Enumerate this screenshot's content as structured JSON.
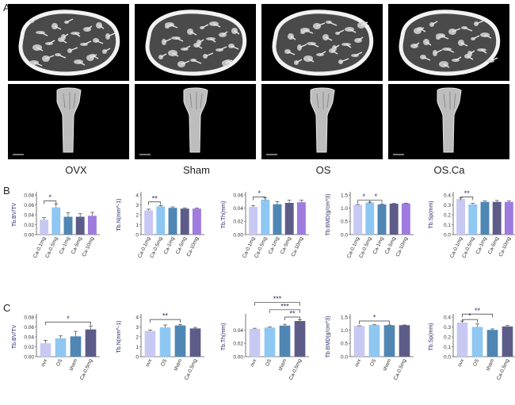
{
  "panels": {
    "a": "A",
    "b": "B",
    "c": "C"
  },
  "groups": [
    "OVX",
    "Sham",
    "OS",
    "OS.Ca"
  ],
  "colors": {
    "c1": "#c8c9f2",
    "c2": "#8ec7f2",
    "c3": "#4f86b4",
    "c4": "#5d5c89",
    "c5": "#9f7be0"
  },
  "chart_data": [
    {
      "type": "bar",
      "row": "B",
      "ylabel": "Tb.BV/TV",
      "categories": [
        "Ca-0.1mg",
        "Ca-0.5mg",
        "Ca-1mg",
        "Ca-5mg",
        "Ca-10mg"
      ],
      "values": [
        0.03,
        0.055,
        0.036,
        0.036,
        0.038
      ],
      "errors": [
        0.004,
        0.007,
        0.008,
        0.006,
        0.007
      ],
      "yticks": [
        "0.00",
        "0.02",
        "0.04",
        "0.06",
        "0.08"
      ],
      "ylim": [
        0,
        0.08
      ],
      "sig": [
        {
          "from": 0,
          "to": 1,
          "label": "*",
          "y": 0.068
        }
      ]
    },
    {
      "type": "bar",
      "row": "B",
      "ylabel": "Tb.N(mm^-1)",
      "categories": [
        "Ca-0.1mg",
        "Ca-0.5mg",
        "Ca-1mg",
        "Ca-5mg",
        "Ca-10mg"
      ],
      "values": [
        2.45,
        2.85,
        2.7,
        2.62,
        2.62
      ],
      "errors": [
        0.12,
        0.08,
        0.1,
        0.08,
        0.05
      ],
      "yticks": [
        "0",
        "1",
        "2",
        "3",
        "4"
      ],
      "ylim": [
        0,
        4
      ],
      "sig": [
        {
          "from": 0,
          "to": 1,
          "label": "**",
          "y": 3.3
        }
      ]
    },
    {
      "type": "bar",
      "row": "B",
      "ylabel": "Tb.Th(mm)",
      "categories": [
        "Ca-0.1mg",
        "Ca-0.5mg",
        "Ca-1mg",
        "Ca-5mg",
        "Ca-10mg"
      ],
      "values": [
        0.042,
        0.053,
        0.046,
        0.048,
        0.049
      ],
      "errors": [
        0.002,
        0.003,
        0.004,
        0.004,
        0.003
      ],
      "yticks": [
        "0.00",
        "0.02",
        "0.04",
        "0.06"
      ],
      "ylim": [
        0,
        0.06
      ],
      "sig": [
        {
          "from": 0,
          "to": 1,
          "label": "*",
          "y": 0.057
        }
      ]
    },
    {
      "type": "bar",
      "row": "B",
      "ylabel": "Tb.BMD(g/cm^3)",
      "categories": [
        "Ca-0.1mg",
        "Ca-0.5mg",
        "Ca-1mg",
        "Ca-5mg",
        "Ca-10mg"
      ],
      "values": [
        1.13,
        1.21,
        1.14,
        1.17,
        1.18
      ],
      "errors": [
        0.01,
        0.02,
        0.01,
        0.01,
        0.01
      ],
      "yticks": [
        "0.0",
        "0.5",
        "1.0",
        "1.5"
      ],
      "ylim": [
        0,
        1.5
      ],
      "sig": [
        {
          "from": 0,
          "to": 1,
          "label": "*",
          "y": 1.3
        },
        {
          "from": 1,
          "to": 2,
          "label": "*",
          "y": 1.3
        }
      ]
    },
    {
      "type": "bar",
      "row": "B",
      "ylabel": "Tb.Sp(mm)",
      "categories": [
        "Ca-0.1mg",
        "Ca-0.5mg",
        "Ca-1mg",
        "Ca-5mg",
        "Ca-10mg"
      ],
      "values": [
        0.36,
        0.305,
        0.33,
        0.33,
        0.33
      ],
      "errors": [
        0.01,
        0.01,
        0.01,
        0.015,
        0.01
      ],
      "yticks": [
        "0.0",
        "0.1",
        "0.2",
        "0.3",
        "0.4"
      ],
      "ylim": [
        0,
        0.4
      ],
      "sig": [
        {
          "from": 0,
          "to": 1,
          "label": "**",
          "y": 0.38
        }
      ]
    },
    {
      "type": "bar",
      "row": "C",
      "ylabel": "Tb.BV/TV",
      "categories": [
        "ovx",
        "OS",
        "sham",
        "Ca-0.5mg"
      ],
      "values": [
        0.027,
        0.037,
        0.041,
        0.055
      ],
      "errors": [
        0.006,
        0.005,
        0.01,
        0.007
      ],
      "yticks": [
        "0.00",
        "0.02",
        "0.04",
        "0.06",
        "0.08"
      ],
      "ylim": [
        0,
        0.08
      ],
      "sig": [
        {
          "from": 0,
          "to": 3,
          "label": "*",
          "y": 0.07
        }
      ]
    },
    {
      "type": "bar",
      "row": "C",
      "ylabel": "Tb.N(mm^-1)",
      "categories": [
        "ovx",
        "OS",
        "sham",
        "Ca-0.5mg"
      ],
      "values": [
        2.6,
        2.95,
        3.15,
        2.85
      ],
      "errors": [
        0.1,
        0.25,
        0.1,
        0.1
      ],
      "yticks": [
        "0",
        "1",
        "2",
        "3",
        "4"
      ],
      "ylim": [
        0,
        4
      ],
      "sig": [
        {
          "from": 0,
          "to": 2,
          "label": "**",
          "y": 3.75
        }
      ]
    },
    {
      "type": "bar",
      "row": "C",
      "ylabel": "Tb.Th(mm)",
      "categories": [
        "ovx",
        "OS",
        "sham",
        "Ca-0.5mg"
      ],
      "values": [
        0.042,
        0.044,
        0.047,
        0.054
      ],
      "errors": [
        0.001,
        0.001,
        0.002,
        0.002
      ],
      "yticks": [
        "0.00",
        "0.02",
        "0.04"
      ],
      "ylim": [
        0,
        0.06
      ],
      "sig": [
        {
          "from": 0,
          "to": 3,
          "label": "***",
          "y": 0.082
        },
        {
          "from": 1,
          "to": 3,
          "label": "***",
          "y": 0.071
        },
        {
          "from": 2,
          "to": 3,
          "label": "**",
          "y": 0.06
        }
      ]
    },
    {
      "type": "bar",
      "row": "C",
      "ylabel": "Tb.BMD(g/cm^3)",
      "categories": [
        "ovx",
        "OS",
        "sham",
        "Ca-0.5mg"
      ],
      "values": [
        1.16,
        1.2,
        1.19,
        1.19
      ],
      "errors": [
        0.01,
        0.01,
        0.01,
        0.01
      ],
      "yticks": [
        "0.0",
        "0.5",
        "1.0",
        "1.5"
      ],
      "ylim": [
        0,
        1.5
      ],
      "sig": [
        {
          "from": 0,
          "to": 2,
          "label": "*",
          "y": 1.35
        }
      ]
    },
    {
      "type": "bar",
      "row": "C",
      "ylabel": "Tb.Sp(mm)",
      "categories": [
        "ovx",
        "OS",
        "sham",
        "Ca-0.5mg"
      ],
      "values": [
        0.345,
        0.3,
        0.27,
        0.305
      ],
      "errors": [
        0.015,
        0.03,
        0.01,
        0.01
      ],
      "yticks": [
        "0.0",
        "0.1",
        "0.2",
        "0.3",
        "0.4"
      ],
      "ylim": [
        0,
        0.4
      ],
      "sig": [
        {
          "from": 0,
          "to": 1,
          "label": "*",
          "y": 0.375
        },
        {
          "from": 0,
          "to": 2,
          "label": "**",
          "y": 0.43
        }
      ]
    }
  ]
}
